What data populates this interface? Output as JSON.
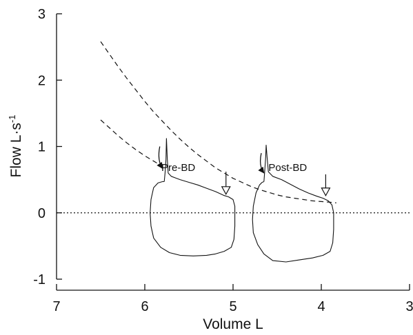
{
  "chart_data": {
    "type": "line",
    "title": "",
    "xlabel": "Volume  L",
    "ylabel_main": "Flow  L·s",
    "ylabel_sup": "-1",
    "xlim": [
      7,
      3
    ],
    "xaxis_reversed": true,
    "ylim": [
      -1,
      3
    ],
    "x_ticks": [
      7,
      6,
      5,
      4,
      3
    ],
    "x_tick_labels": [
      "7",
      "6",
      "5",
      "4",
      "3"
    ],
    "y_ticks": [
      3,
      2,
      1,
      0,
      -1
    ],
    "y_tick_labels": [
      "3",
      "2",
      "1",
      "0",
      "-1"
    ],
    "grid": false,
    "zero_line": {
      "y": 0,
      "style": "dotted"
    },
    "annotations": [
      {
        "text": "Pre-BD",
        "x": 5.62,
        "y": 0.63
      },
      {
        "text": "Post-BD",
        "x": 4.38,
        "y": 0.63
      }
    ],
    "series": [
      {
        "style": "dashed",
        "points": [
          [
            6.5,
            2.58
          ],
          [
            6.4,
            2.39
          ],
          [
            6.3,
            2.2
          ],
          [
            6.2,
            2.02
          ],
          [
            6.1,
            1.85
          ],
          [
            6.0,
            1.68
          ],
          [
            5.9,
            1.52
          ],
          [
            5.8,
            1.38
          ],
          [
            5.7,
            1.24
          ],
          [
            5.6,
            1.11
          ],
          [
            5.5,
            0.99
          ],
          [
            5.4,
            0.88
          ],
          [
            5.3,
            0.78
          ],
          [
            5.2,
            0.68
          ],
          [
            5.1,
            0.6
          ],
          [
            5.0,
            0.52
          ],
          [
            4.9,
            0.46
          ],
          [
            4.8,
            0.4
          ],
          [
            4.7,
            0.35
          ],
          [
            4.6,
            0.31
          ],
          [
            4.5,
            0.27
          ],
          [
            4.4,
            0.24
          ],
          [
            4.3,
            0.22
          ],
          [
            4.2,
            0.2
          ],
          [
            4.1,
            0.18
          ],
          [
            4.0,
            0.17
          ],
          [
            3.9,
            0.16
          ],
          [
            3.83,
            0.15
          ]
        ]
      },
      {
        "style": "dashed",
        "points": [
          [
            6.5,
            1.4
          ],
          [
            6.4,
            1.28
          ],
          [
            6.3,
            1.16
          ],
          [
            6.2,
            1.05
          ],
          [
            6.1,
            0.95
          ],
          [
            6.0,
            0.86
          ],
          [
            5.9,
            0.78
          ],
          [
            5.8,
            0.7
          ]
        ]
      },
      {
        "style": "solid",
        "name_hidden": "pre-bd-loop",
        "points": [
          [
            5.78,
            0.47
          ],
          [
            5.77,
            0.6
          ],
          [
            5.76,
            0.8
          ],
          [
            5.755,
            1.12
          ],
          [
            5.745,
            0.82
          ],
          [
            5.735,
            0.6
          ],
          [
            5.7,
            0.55
          ],
          [
            5.6,
            0.5
          ],
          [
            5.5,
            0.46
          ],
          [
            5.4,
            0.42
          ],
          [
            5.3,
            0.37
          ],
          [
            5.2,
            0.32
          ],
          [
            5.15,
            0.29
          ],
          [
            5.1,
            0.26
          ],
          [
            5.05,
            0.24
          ],
          [
            5.0,
            0.2
          ],
          [
            4.98,
            0.1
          ],
          [
            4.98,
            -0.2
          ],
          [
            4.99,
            -0.4
          ],
          [
            5.02,
            -0.52
          ],
          [
            5.1,
            -0.58
          ],
          [
            5.2,
            -0.62
          ],
          [
            5.3,
            -0.64
          ],
          [
            5.45,
            -0.65
          ],
          [
            5.6,
            -0.64
          ],
          [
            5.72,
            -0.6
          ],
          [
            5.82,
            -0.52
          ],
          [
            5.9,
            -0.38
          ],
          [
            5.93,
            -0.2
          ],
          [
            5.94,
            0.0
          ],
          [
            5.93,
            0.2
          ],
          [
            5.9,
            0.38
          ],
          [
            5.85,
            0.45
          ],
          [
            5.8,
            0.47
          ],
          [
            5.78,
            0.47
          ]
        ]
      },
      {
        "style": "solid",
        "name_hidden": "post-bd-loop",
        "points": [
          [
            4.65,
            0.47
          ],
          [
            4.64,
            0.65
          ],
          [
            4.63,
            0.85
          ],
          [
            4.625,
            1.02
          ],
          [
            4.615,
            0.85
          ],
          [
            4.6,
            0.62
          ],
          [
            4.55,
            0.55
          ],
          [
            4.45,
            0.5
          ],
          [
            4.35,
            0.43
          ],
          [
            4.25,
            0.36
          ],
          [
            4.15,
            0.3
          ],
          [
            4.05,
            0.25
          ],
          [
            3.98,
            0.22
          ],
          [
            3.92,
            0.18
          ],
          [
            3.88,
            0.12
          ],
          [
            3.86,
            0.0
          ],
          [
            3.86,
            -0.25
          ],
          [
            3.87,
            -0.45
          ],
          [
            3.9,
            -0.58
          ],
          [
            3.98,
            -0.64
          ],
          [
            4.1,
            -0.68
          ],
          [
            4.25,
            -0.71
          ],
          [
            4.4,
            -0.74
          ],
          [
            4.55,
            -0.72
          ],
          [
            4.65,
            -0.62
          ],
          [
            4.72,
            -0.48
          ],
          [
            4.77,
            -0.3
          ],
          [
            4.78,
            -0.1
          ],
          [
            4.77,
            0.1
          ],
          [
            4.74,
            0.3
          ],
          [
            4.7,
            0.42
          ],
          [
            4.67,
            0.46
          ],
          [
            4.65,
            0.47
          ]
        ]
      }
    ],
    "arrows": [
      {
        "kind": "curved-filled",
        "tip": [
          5.8,
          0.67
        ],
        "from": [
          5.83,
          1.0
        ]
      },
      {
        "kind": "curved-filled",
        "tip": [
          4.65,
          0.6
        ],
        "from": [
          4.68,
          0.9
        ]
      },
      {
        "kind": "hollow-down",
        "tip": [
          5.08,
          0.28
        ],
        "from": [
          5.08,
          0.62
        ]
      },
      {
        "kind": "hollow-down",
        "tip": [
          3.95,
          0.26
        ],
        "from": [
          3.95,
          0.58
        ]
      }
    ]
  }
}
